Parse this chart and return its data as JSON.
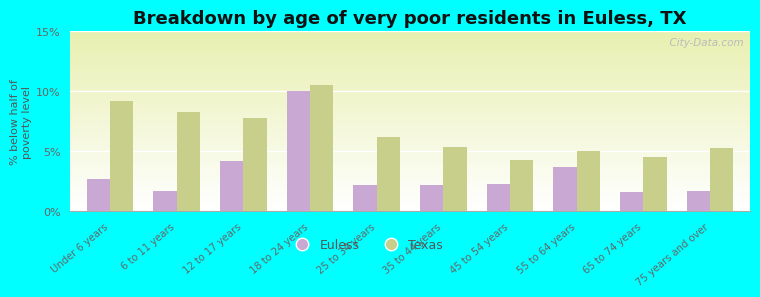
{
  "title": "Breakdown by age of very poor residents in Euless, TX",
  "ylabel": "% below half of\npoverty level",
  "categories": [
    "Under 6 years",
    "6 to 11 years",
    "12 to 17 years",
    "18 to 24 years",
    "25 to 34 years",
    "35 to 44 years",
    "45 to 54 years",
    "55 to 64 years",
    "65 to 74 years",
    "75 years and over"
  ],
  "euless_values": [
    2.7,
    1.7,
    4.2,
    10.0,
    2.2,
    2.2,
    2.3,
    3.7,
    1.6,
    1.7
  ],
  "texas_values": [
    9.2,
    8.3,
    7.8,
    10.5,
    6.2,
    5.4,
    4.3,
    5.0,
    4.5,
    5.3
  ],
  "euless_color": "#c9a8d4",
  "texas_color": "#c8cf8a",
  "background_color": "#00ffff",
  "ylim": [
    0,
    15
  ],
  "yticks": [
    0,
    5,
    10,
    15
  ],
  "ytick_labels": [
    "0%",
    "5%",
    "10%",
    "15%"
  ],
  "title_fontsize": 13,
  "bar_width": 0.35,
  "watermark": "  City-Data.com"
}
